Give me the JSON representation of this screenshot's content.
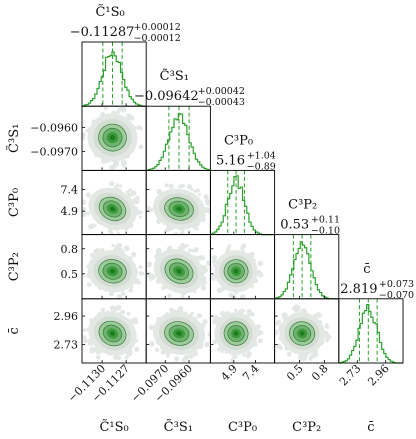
{
  "chart_data": {
    "type": "corner",
    "parameters": [
      {
        "symbol": "C̃",
        "subscript": "¹S₀",
        "axis_label": "C̃¹S₀",
        "median": "−0.11287",
        "upper": "+0.00012",
        "lower": "−0.00012",
        "center": -0.11287,
        "sigma": 0.00012,
        "range": [
          -0.11325,
          -0.11245
        ],
        "ticks": [
          -0.113,
          -0.1127
        ],
        "tick_labels": [
          "−0.1130",
          "−0.1127"
        ]
      },
      {
        "symbol": "C̃",
        "subscript": "³S₁",
        "axis_label": "C̃³S₁",
        "median": "−0.09642",
        "upper": "+0.00042",
        "lower": "−0.00043",
        "center": -0.09642,
        "sigma": 0.000425,
        "range": [
          -0.0978,
          -0.0951
        ],
        "ticks": [
          -0.097,
          -0.096
        ],
        "tick_labels": [
          "−0.0970",
          "−0.0960"
        ]
      },
      {
        "symbol": "C",
        "subscript": "³P₀",
        "axis_label": "C³P₀",
        "median": "5.16",
        "upper": "+1.04",
        "lower": "−0.89",
        "center": 5.16,
        "sigma": 0.96,
        "range": [
          2.2,
          9.6
        ],
        "ticks": [
          4.9,
          7.4
        ],
        "tick_labels": [
          "4.9",
          "7.4"
        ]
      },
      {
        "symbol": "C",
        "subscript": "³P₂",
        "axis_label": "C³P₂",
        "median": "0.53",
        "upper": "+0.11",
        "lower": "−0.10",
        "center": 0.53,
        "sigma": 0.105,
        "range": [
          0.2,
          0.97
        ],
        "ticks": [
          0.5,
          0.8
        ],
        "tick_labels": [
          "0.5",
          "0.8"
        ]
      },
      {
        "symbol": "c̄",
        "subscript": "",
        "axis_label": "c̄",
        "median": "2.819",
        "upper": "+0.073",
        "lower": "−0.070",
        "center": 2.819,
        "sigma": 0.0715,
        "range": [
          2.58,
          3.1
        ],
        "ticks": [
          2.73,
          2.96
        ],
        "tick_labels": [
          "2.73",
          "2.96"
        ]
      }
    ],
    "quantile_lines": "16th, 50th, 84th percentile (dashed)",
    "colors": {
      "histogram": "#2ca02c",
      "quantile": "#2ca02c",
      "density_outer": "#e4e8e4",
      "density_mid": "#9ccb9c",
      "density_inner": "#3c9a3c",
      "density_core": "#1e7a1e",
      "frame": "#000000"
    }
  }
}
